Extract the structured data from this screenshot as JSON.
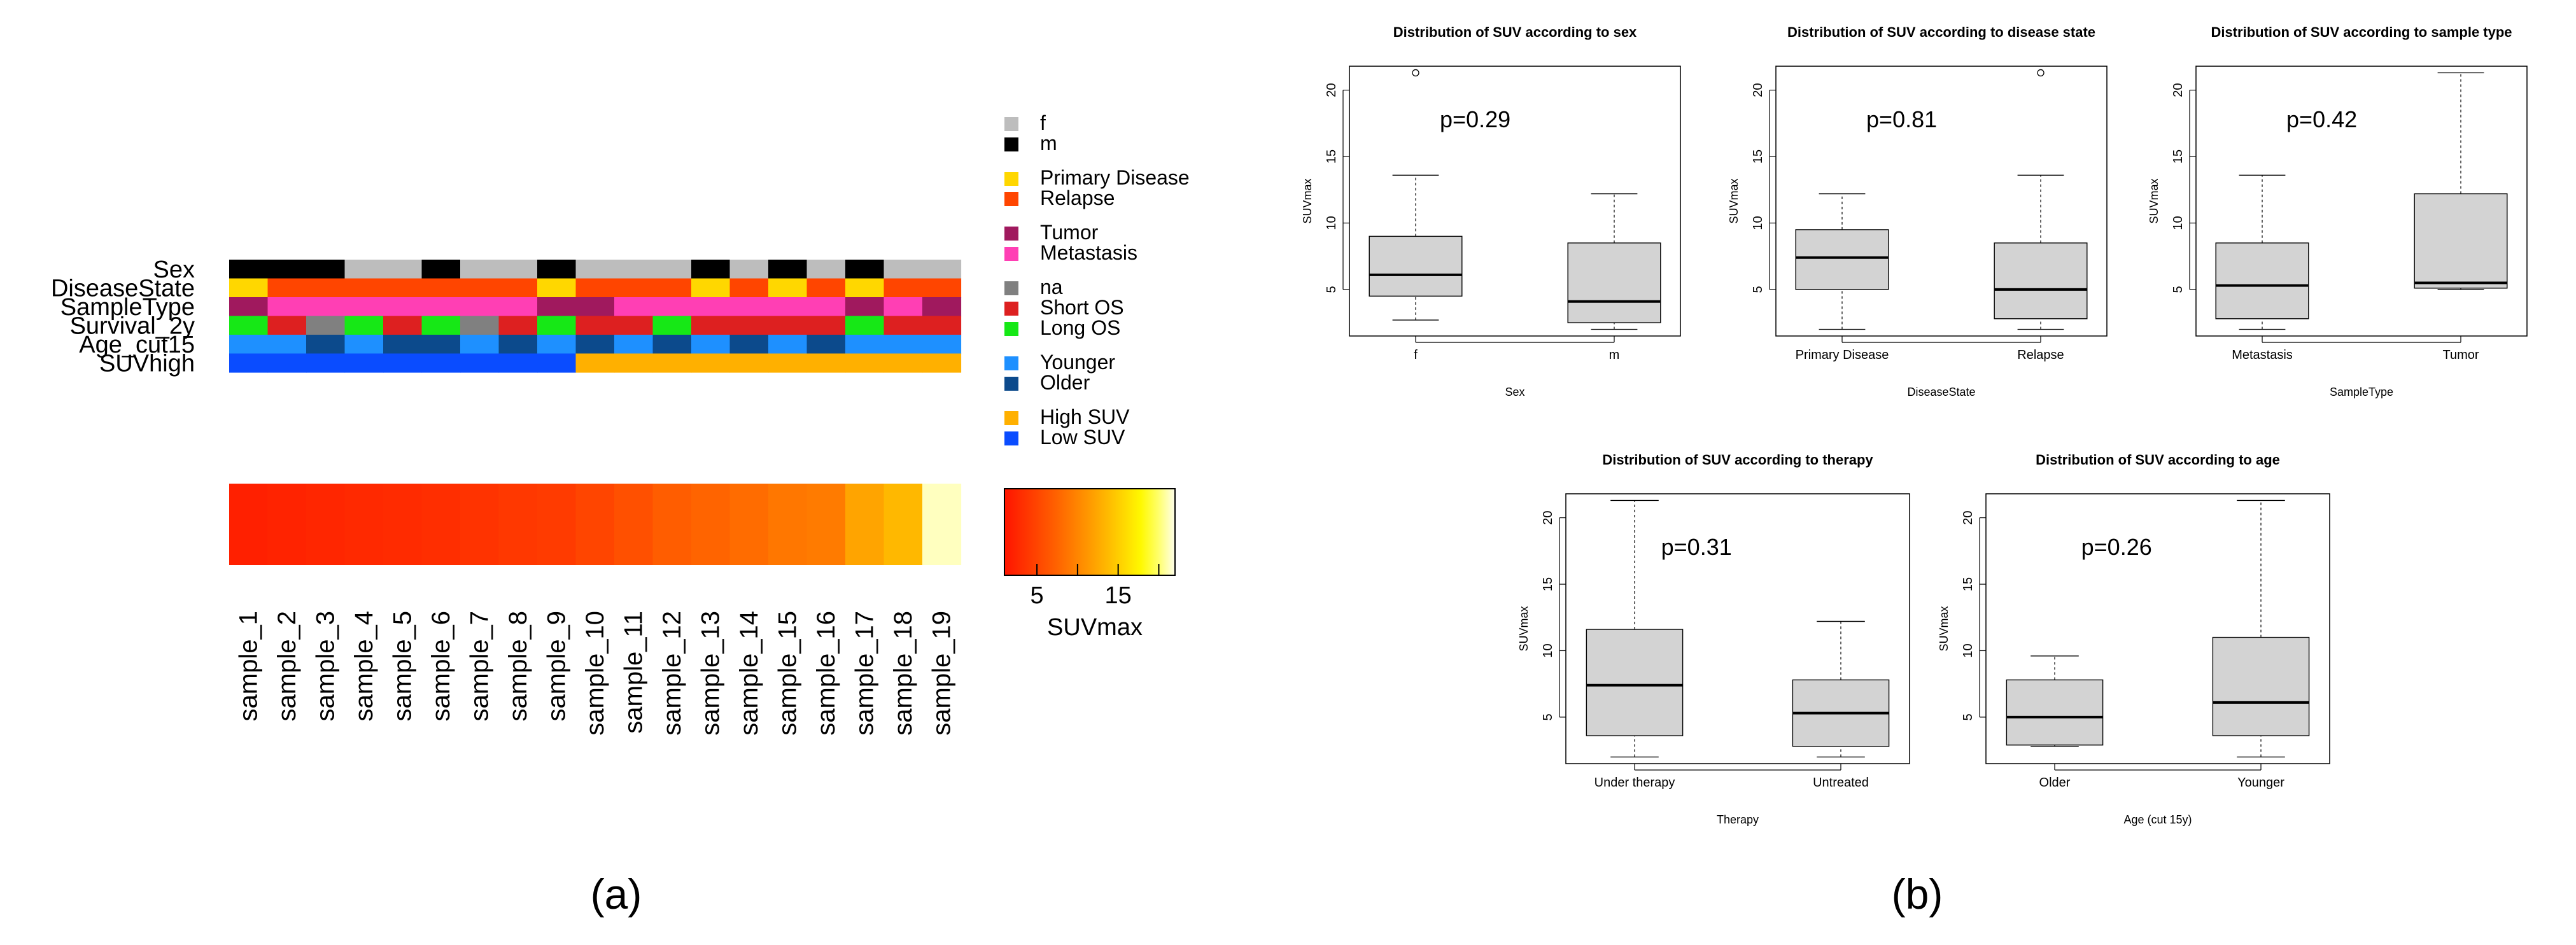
{
  "figure": {
    "panel_a_label": "(a)",
    "panel_b_label": "(b)"
  },
  "chart_data": [
    {
      "type": "heatmap",
      "panel": "a",
      "samples": [
        "sample_1",
        "sample_2",
        "sample_3",
        "sample_4",
        "sample_5",
        "sample_6",
        "sample_7",
        "sample_8",
        "sample_9",
        "sample_10",
        "sample_11",
        "sample_12",
        "sample_13",
        "sample_14",
        "sample_15",
        "sample_16",
        "sample_17",
        "sample_18",
        "sample_19"
      ],
      "annotation_rows": [
        {
          "name": "Sex",
          "values": [
            "m",
            "m",
            "m",
            "f",
            "f",
            "m",
            "f",
            "f",
            "m",
            "f",
            "f",
            "f",
            "m",
            "f",
            "m",
            "f",
            "m",
            "f",
            "f"
          ]
        },
        {
          "name": "DiseaseState",
          "values": [
            "Primary Disease",
            "Relapse",
            "Relapse",
            "Relapse",
            "Relapse",
            "Relapse",
            "Relapse",
            "Relapse",
            "Primary Disease",
            "Relapse",
            "Relapse",
            "Relapse",
            "Primary Disease",
            "Relapse",
            "Primary Disease",
            "Relapse",
            "Primary Disease",
            "Relapse",
            "Relapse"
          ]
        },
        {
          "name": "SampleType",
          "values": [
            "Tumor",
            "Metastasis",
            "Metastasis",
            "Metastasis",
            "Metastasis",
            "Metastasis",
            "Metastasis",
            "Metastasis",
            "Tumor",
            "Tumor",
            "Metastasis",
            "Metastasis",
            "Metastasis",
            "Metastasis",
            "Metastasis",
            "Metastasis",
            "Tumor",
            "Metastasis",
            "Tumor"
          ]
        },
        {
          "name": "Survival_2y",
          "values": [
            "Long OS",
            "Short OS",
            "na",
            "Long OS",
            "Short OS",
            "Long OS",
            "na",
            "Short OS",
            "Long OS",
            "Short OS",
            "Short OS",
            "Long OS",
            "Short OS",
            "Short OS",
            "Short OS",
            "Short OS",
            "Long OS",
            "Short OS",
            "Short OS"
          ]
        },
        {
          "name": "Age_cut15",
          "values": [
            "Younger",
            "Younger",
            "Older",
            "Younger",
            "Older",
            "Older",
            "Younger",
            "Older",
            "Younger",
            "Older",
            "Younger",
            "Older",
            "Younger",
            "Older",
            "Younger",
            "Older",
            "Younger",
            "Younger",
            "Younger"
          ]
        },
        {
          "name": "SUVhigh",
          "values": [
            "Low SUV",
            "Low SUV",
            "Low SUV",
            "Low SUV",
            "Low SUV",
            "Low SUV",
            "Low SUV",
            "Low SUV",
            "Low SUV",
            "High SUV",
            "High SUV",
            "High SUV",
            "High SUV",
            "High SUV",
            "High SUV",
            "High SUV",
            "High SUV",
            "High SUV",
            "High SUV"
          ]
        }
      ],
      "category_colors": {
        "f": "#bdbdbd",
        "m": "#000000",
        "Primary Disease": "#ffd700",
        "Relapse": "#ff4500",
        "Tumor": "#a0195e",
        "Metastasis": "#ff3fb4",
        "na": "#808080",
        "Short OS": "#dd2020",
        "Long OS": "#16e816",
        "Younger": "#1e90ff",
        "Older": "#0c4a8c",
        "High SUV": "#ffb000",
        "Low SUV": "#0a4cff"
      },
      "legend_groups": [
        [
          "f",
          "m"
        ],
        [
          "Primary Disease",
          "Relapse"
        ],
        [
          "Tumor",
          "Metastasis"
        ],
        [
          "na",
          "Short OS",
          "Long OS"
        ],
        [
          "Younger",
          "Older"
        ],
        [
          "High SUV",
          "Low SUV"
        ]
      ],
      "heat_values": [
        2,
        2.2,
        2.5,
        2.7,
        2.9,
        3.1,
        3.5,
        3.9,
        4.2,
        5.0,
        5.9,
        7.0,
        7.5,
        8.2,
        9.0,
        9.3,
        12.2,
        13.6,
        21.3
      ],
      "heat_range": [
        1,
        22
      ],
      "colorbar": {
        "ticks": [
          5,
          10,
          15,
          20
        ],
        "tick_labels": [
          "5",
          "15"
        ],
        "tick_label_values": [
          5,
          15
        ],
        "label": "SUVmax"
      }
    },
    {
      "type": "boxplot",
      "panel": "b",
      "title": "Distribution of SUV according to sex",
      "xlabel": "Sex",
      "ylabel": "SUVmax",
      "ylim": [
        1.5,
        21.8
      ],
      "yticks": [
        5,
        10,
        15,
        20
      ],
      "pvalue": "p=0.29",
      "groups": [
        {
          "name": "f",
          "min": 2.7,
          "q1": 4.5,
          "median": 6.1,
          "q3": 9.0,
          "max": 13.6,
          "outliers": [
            21.3
          ]
        },
        {
          "name": "m",
          "min": 2.0,
          "q1": 2.5,
          "median": 4.1,
          "q3": 8.5,
          "max": 12.2,
          "outliers": []
        }
      ]
    },
    {
      "type": "boxplot",
      "panel": "b",
      "title": "Distribution of SUV according to disease state",
      "xlabel": "DiseaseState",
      "ylabel": "SUVmax",
      "ylim": [
        1.5,
        21.8
      ],
      "yticks": [
        5,
        10,
        15,
        20
      ],
      "pvalue": "p=0.81",
      "groups": [
        {
          "name": "Primary Disease",
          "min": 2.0,
          "q1": 5.0,
          "median": 7.4,
          "q3": 9.5,
          "max": 12.2,
          "outliers": []
        },
        {
          "name": "Relapse",
          "min": 2.0,
          "q1": 2.8,
          "median": 5.0,
          "q3": 8.5,
          "max": 13.6,
          "outliers": [
            21.3
          ]
        }
      ]
    },
    {
      "type": "boxplot",
      "panel": "b",
      "title": "Distribution of SUV according to sample type",
      "xlabel": "SampleType",
      "ylabel": "SUVmax",
      "ylim": [
        1.5,
        21.8
      ],
      "yticks": [
        5,
        10,
        15,
        20
      ],
      "pvalue": "p=0.42",
      "groups": [
        {
          "name": "Metastasis",
          "min": 2.0,
          "q1": 2.8,
          "median": 5.3,
          "q3": 8.5,
          "max": 13.6,
          "outliers": []
        },
        {
          "name": "Tumor",
          "min": 5.0,
          "q1": 5.1,
          "median": 5.5,
          "q3": 12.2,
          "max": 21.3,
          "outliers": []
        }
      ]
    },
    {
      "type": "boxplot",
      "panel": "b",
      "title": "Distribution of SUV according to therapy",
      "xlabel": "Therapy",
      "ylabel": "SUVmax",
      "ylim": [
        1.5,
        21.8
      ],
      "yticks": [
        5,
        10,
        15,
        20
      ],
      "pvalue": "p=0.31",
      "groups": [
        {
          "name": "Under therapy",
          "min": 2.0,
          "q1": 3.6,
          "median": 7.4,
          "q3": 11.6,
          "max": 21.3,
          "outliers": []
        },
        {
          "name": "Untreated",
          "min": 2.0,
          "q1": 2.8,
          "median": 5.3,
          "q3": 7.8,
          "max": 12.2,
          "outliers": []
        }
      ]
    },
    {
      "type": "boxplot",
      "panel": "b",
      "title": "Distribution of SUV according to age",
      "xlabel": "Age (cut 15y)",
      "ylabel": "SUVmax",
      "ylim": [
        1.5,
        21.8
      ],
      "yticks": [
        5,
        10,
        15,
        20
      ],
      "pvalue": "p=0.26",
      "groups": [
        {
          "name": "Older",
          "min": 2.8,
          "q1": 2.9,
          "median": 5.0,
          "q3": 7.8,
          "max": 9.6,
          "outliers": []
        },
        {
          "name": "Younger",
          "min": 2.0,
          "q1": 3.6,
          "median": 6.1,
          "q3": 11.0,
          "max": 21.3,
          "outliers": []
        }
      ]
    }
  ]
}
